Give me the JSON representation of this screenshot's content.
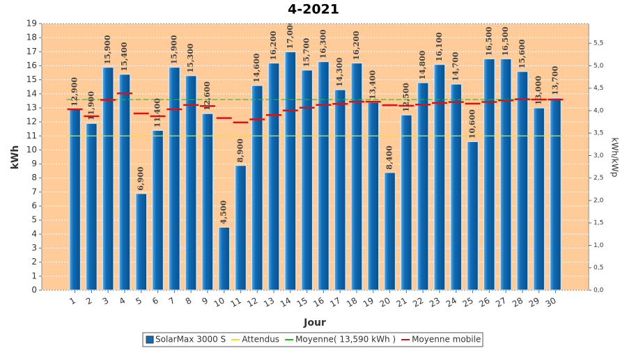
{
  "chart_data": {
    "type": "bar",
    "title": "4-2021",
    "x_label": "Jour",
    "y_label": "kWh",
    "y2_label": "kWh/kWp",
    "categories": [
      "1",
      "2",
      "3",
      "4",
      "5",
      "6",
      "7",
      "8",
      "9",
      "10",
      "11",
      "12",
      "13",
      "14",
      "15",
      "16",
      "17",
      "18",
      "19",
      "20",
      "21",
      "22",
      "23",
      "24",
      "25",
      "26",
      "27",
      "28",
      "29",
      "30"
    ],
    "series": [
      {
        "name": "SolarMax 3000 S",
        "color": "#0f6cb6",
        "values": [
          12.9,
          11.9,
          15.9,
          15.4,
          6.9,
          11.4,
          15.9,
          15.3,
          12.6,
          4.5,
          8.9,
          14.6,
          16.2,
          17.0,
          15.7,
          16.3,
          14.3,
          16.2,
          13.4,
          8.4,
          12.5,
          14.8,
          16.1,
          14.7,
          10.6,
          16.5,
          16.5,
          15.6,
          13.0,
          13.7
        ],
        "value_labels": [
          "12,900",
          "11,900",
          "15,900",
          "15,400",
          "6,900",
          "11,400",
          "15,900",
          "15,300",
          "12,600",
          "4,500",
          "8,900",
          "14,600",
          "16,200",
          "17,000",
          "15,700",
          "16,300",
          "14,300",
          "16,200",
          "13,400",
          "8,400",
          "12,500",
          "14,800",
          "16,100",
          "14,700",
          "10,600",
          "16,500",
          "16,500",
          "15,600",
          "13,000",
          "13,700"
        ]
      },
      {
        "name": "Attendus",
        "color": "#e6e619",
        "value": 11.0
      },
      {
        "name": "Moyenne( 13,590 kWh )",
        "color": "#22bb22",
        "value": 13.59
      },
      {
        "name": "Moyenne mobile",
        "color": "#dd1111",
        "values": [
          12.9,
          12.4,
          13.57,
          14.03,
          12.6,
          12.4,
          12.9,
          13.2,
          13.13,
          12.27,
          11.96,
          12.18,
          12.49,
          12.81,
          13.01,
          13.21,
          13.28,
          13.44,
          13.44,
          13.19,
          13.15,
          13.23,
          13.35,
          13.41,
          13.3,
          13.42,
          13.53,
          13.61,
          13.59,
          13.59
        ]
      }
    ],
    "ylim": [
      0,
      19
    ],
    "yticks": [
      0,
      1,
      2,
      3,
      4,
      5,
      6,
      7,
      8,
      9,
      10,
      11,
      12,
      13,
      14,
      15,
      16,
      17,
      18,
      19
    ],
    "y2lim": [
      0,
      5.9375
    ],
    "y2ticks": [
      {
        "value": 0,
        "label": "0,0"
      },
      {
        "value": 0.5,
        "label": "0,5"
      },
      {
        "value": 1,
        "label": "1,0"
      },
      {
        "value": 1.5,
        "label": "1,5"
      },
      {
        "value": 2,
        "label": "2,0"
      },
      {
        "value": 2.5,
        "label": "2,5"
      },
      {
        "value": 3,
        "label": "3,0"
      },
      {
        "value": 3.5,
        "label": "3,5"
      },
      {
        "value": 4,
        "label": "4,0"
      },
      {
        "value": 4.5,
        "label": "4,5"
      },
      {
        "value": 5,
        "label": "5,0"
      },
      {
        "value": 5.5,
        "label": "5,5"
      }
    ],
    "grid": true,
    "legend": "bottom"
  }
}
